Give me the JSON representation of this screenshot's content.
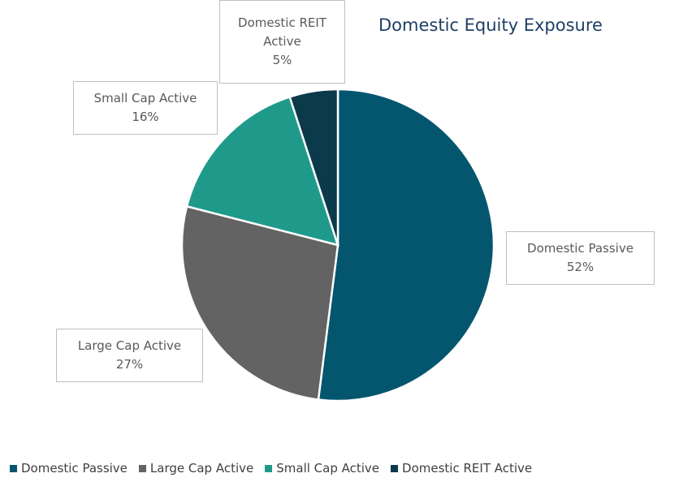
{
  "chart_data": {
    "type": "pie",
    "title": "Domestic Equity Exposure",
    "categories": [
      "Domestic Passive",
      "Large Cap Active",
      "Small Cap Active",
      "Domestic REIT Active"
    ],
    "values": [
      52,
      27,
      16,
      5
    ],
    "value_labels": [
      "52%",
      "27%",
      "16%",
      "5%"
    ],
    "colors": [
      "#04566e",
      "#636363",
      "#1f9a8a",
      "#0b3a4a"
    ],
    "legend": "bottom"
  }
}
